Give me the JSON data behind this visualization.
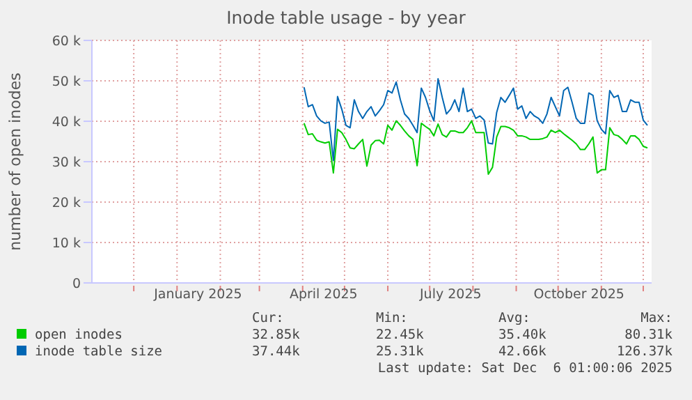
{
  "chart_data": {
    "type": "line",
    "title": "Inode table usage - by year",
    "ylabel": "number of open inodes",
    "x": [
      "2025-04-02",
      "2025-04-05",
      "2025-04-08",
      "2025-04-11",
      "2025-04-14",
      "2025-04-17",
      "2025-04-20",
      "2025-04-23",
      "2025-04-26",
      "2025-04-29",
      "2025-05-02",
      "2025-05-05",
      "2025-05-08",
      "2025-05-11",
      "2025-05-14",
      "2025-05-17",
      "2025-05-20",
      "2025-05-23",
      "2025-05-26",
      "2025-05-29",
      "2025-06-01",
      "2025-06-04",
      "2025-06-07",
      "2025-06-10",
      "2025-06-13",
      "2025-06-16",
      "2025-06-19",
      "2025-06-22",
      "2025-06-25",
      "2025-06-28",
      "2025-07-01",
      "2025-07-04",
      "2025-07-07",
      "2025-07-10",
      "2025-07-13",
      "2025-07-16",
      "2025-07-19",
      "2025-07-22",
      "2025-07-25",
      "2025-07-28",
      "2025-07-31",
      "2025-08-03",
      "2025-08-06",
      "2025-08-09",
      "2025-08-12",
      "2025-08-15",
      "2025-08-18",
      "2025-08-21",
      "2025-08-24",
      "2025-08-27",
      "2025-08-30",
      "2025-09-02",
      "2025-09-05",
      "2025-09-08",
      "2025-09-11",
      "2025-09-14",
      "2025-09-17",
      "2025-09-20",
      "2025-09-23",
      "2025-09-26",
      "2025-09-29",
      "2025-10-02",
      "2025-10-05",
      "2025-10-08",
      "2025-10-11",
      "2025-10-14",
      "2025-10-17",
      "2025-10-20",
      "2025-10-23",
      "2025-10-26",
      "2025-10-29",
      "2025-11-01",
      "2025-11-04",
      "2025-11-07",
      "2025-11-10",
      "2025-11-13",
      "2025-11-16",
      "2025-11-19",
      "2025-11-22",
      "2025-11-25",
      "2025-11-28",
      "2025-12-01",
      "2025-12-04"
    ],
    "series": [
      {
        "name": "open inodes",
        "color": "#00cc00",
        "values": [
          39500,
          36700,
          36900,
          35300,
          34900,
          34600,
          34900,
          27200,
          38000,
          37200,
          35500,
          33400,
          33200,
          34400,
          35500,
          28900,
          34100,
          35200,
          35300,
          34400,
          39000,
          37800,
          40100,
          39000,
          37600,
          36400,
          35500,
          29000,
          39500,
          38700,
          38000,
          36400,
          39300,
          36700,
          36100,
          37600,
          37600,
          37200,
          37200,
          38400,
          40100,
          37200,
          37200,
          37200,
          26900,
          28600,
          36100,
          38700,
          38700,
          38400,
          37800,
          36400,
          36400,
          36100,
          35500,
          35500,
          35500,
          35700,
          36100,
          37800,
          37200,
          37800,
          36900,
          36100,
          35300,
          34400,
          33000,
          33000,
          34400,
          36100,
          27200,
          28000,
          28000,
          38400,
          36700,
          36400,
          35500,
          34400,
          36400,
          36400,
          35500,
          33800,
          33400
        ]
      },
      {
        "name": "inode table size",
        "color": "#0066b3",
        "values": [
          48400,
          43600,
          44100,
          41300,
          40100,
          39500,
          39800,
          30300,
          46100,
          43000,
          39000,
          38400,
          45300,
          42400,
          40700,
          42400,
          43600,
          41300,
          42600,
          44100,
          47600,
          47000,
          49700,
          45300,
          41800,
          40700,
          39000,
          37200,
          48200,
          45900,
          42600,
          40100,
          50500,
          45900,
          41800,
          43000,
          45300,
          42400,
          48200,
          42400,
          43000,
          40700,
          41300,
          40300,
          34600,
          34400,
          42200,
          45900,
          44700,
          46400,
          48200,
          43000,
          43800,
          40700,
          42400,
          41300,
          40700,
          39500,
          41800,
          45900,
          43600,
          41300,
          47600,
          48400,
          44700,
          40700,
          39500,
          39500,
          47000,
          46400,
          40100,
          38000,
          36900,
          47600,
          45900,
          46400,
          42400,
          42400,
          45300,
          44700,
          44700,
          40300,
          39000
        ]
      }
    ],
    "xlim": [
      "2024-11-01",
      "2025-12-07"
    ],
    "xticks": [
      {
        "value": "2024-12-01",
        "label": null
      },
      {
        "value": "2025-01-01",
        "label": null
      },
      {
        "value": "2025-01-16",
        "label": "January 2025"
      },
      {
        "value": "2025-02-01",
        "label": null
      },
      {
        "value": "2025-03-01",
        "label": null
      },
      {
        "value": "2025-04-01",
        "label": null
      },
      {
        "value": "2025-04-16",
        "label": "April 2025"
      },
      {
        "value": "2025-05-01",
        "label": null
      },
      {
        "value": "2025-06-01",
        "label": null
      },
      {
        "value": "2025-07-01",
        "label": null
      },
      {
        "value": "2025-07-16",
        "label": "July 2025"
      },
      {
        "value": "2025-08-01",
        "label": null
      },
      {
        "value": "2025-09-01",
        "label": null
      },
      {
        "value": "2025-10-01",
        "label": null
      },
      {
        "value": "2025-10-16",
        "label": "October 2025"
      },
      {
        "value": "2025-11-01",
        "label": null
      },
      {
        "value": "2025-12-01",
        "label": null
      }
    ],
    "ylim": [
      0,
      60000
    ],
    "yticks": [
      0,
      {
        "value": 10000,
        "label": "10 k"
      },
      {
        "value": 20000,
        "label": "20 k"
      },
      {
        "value": 30000,
        "label": "30 k"
      },
      {
        "value": 40000,
        "label": "40 k"
      },
      {
        "value": 50000,
        "label": "50 k"
      },
      {
        "value": 60000,
        "label": "60 k"
      }
    ],
    "grid": true,
    "legend": "bottom",
    "marker": "none",
    "line_style": "solid",
    "annotations": [
      "Cur:",
      "Min:",
      "Avg:",
      "Max:",
      "32.85k",
      "22.45k",
      "35.40k",
      "80.31k",
      "37.44k",
      "25.31k",
      "42.66k",
      "126.37k",
      "Last update: Sat Dec  6 01:00:06 2025"
    ]
  }
}
